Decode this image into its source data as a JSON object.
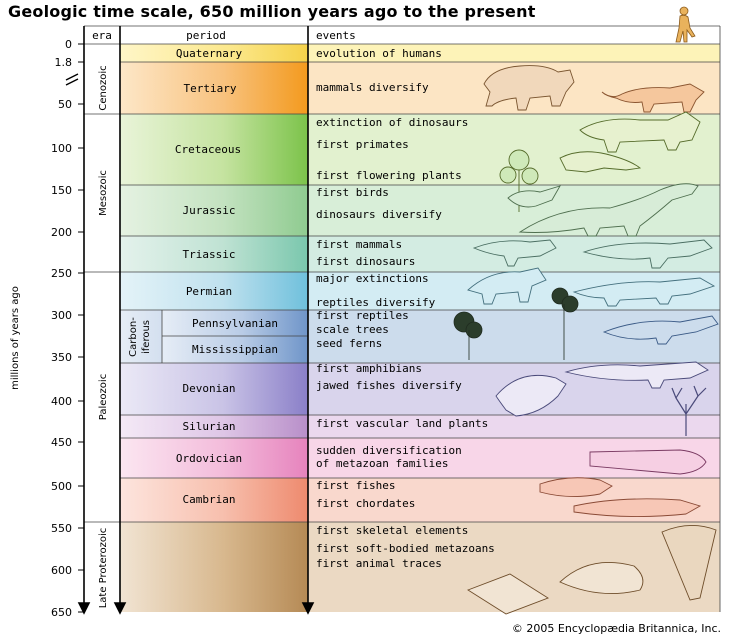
{
  "title": "Geologic time scale, 650 million years ago to the present",
  "copyright": "© 2005 Encyclopædia Britannica, Inc.",
  "headers": {
    "era": "era",
    "period": "period",
    "events": "events"
  },
  "y_axis_label": "millions of years ago",
  "ticks": [
    "0",
    "1.8",
    "50",
    "100",
    "150",
    "200",
    "250",
    "300",
    "350",
    "400",
    "450",
    "500",
    "550",
    "600",
    "650"
  ],
  "eras": [
    {
      "name": "Cenozoic"
    },
    {
      "name": "Mesozoic"
    },
    {
      "name": "Paleozoic"
    },
    {
      "name": "Late Proterozoic"
    }
  ],
  "carboniferous_label": [
    "Carbon-",
    "iferous"
  ],
  "periods": [
    {
      "name": "Quaternary",
      "color": "#fce98a",
      "events": [
        "evolution of humans"
      ]
    },
    {
      "name": "Tertiary",
      "color": "#f7c98a",
      "events": [
        "mammals diversify"
      ]
    },
    {
      "name": "Cretaceous",
      "color": "#d4eab0",
      "events": [
        "extinction of dinosaurs",
        "first primates",
        "first flowering plants"
      ]
    },
    {
      "name": "Jurassic",
      "color": "#cfe8cf",
      "events": [
        "first birds",
        "dinosaurs diversify"
      ]
    },
    {
      "name": "Triassic",
      "color": "#cde8de",
      "events": [
        "first mammals",
        "first dinosaurs"
      ]
    },
    {
      "name": "Permian",
      "color": "#cce6ef",
      "events": [
        "major extinctions",
        "reptiles diversify"
      ]
    },
    {
      "name": "Pennsylvanian",
      "color": "#c9d7ea",
      "events": [
        "first reptiles",
        "scale trees",
        "seed ferns"
      ]
    },
    {
      "name": "Mississippian",
      "color": "#c9d7ea",
      "events": []
    },
    {
      "name": "Devonian",
      "color": "#d5d0ea",
      "events": [
        "first amphibians",
        "jawed fishes diversify"
      ]
    },
    {
      "name": "Silurian",
      "color": "#e8d2ea",
      "events": [
        "first vascular land plants"
      ]
    },
    {
      "name": "Ordovician",
      "color": "#f6d0e5",
      "events": [
        "sudden diversification",
        "of metazoan families"
      ]
    },
    {
      "name": "Cambrian",
      "color": "#f8d2c8",
      "events": [
        "first fishes",
        "first chordates"
      ]
    },
    {
      "name": "",
      "color": "#e8d5bd",
      "events": [
        "first skeletal elements",
        "first soft-bodied metazoans",
        "first animal traces"
      ]
    }
  ]
}
